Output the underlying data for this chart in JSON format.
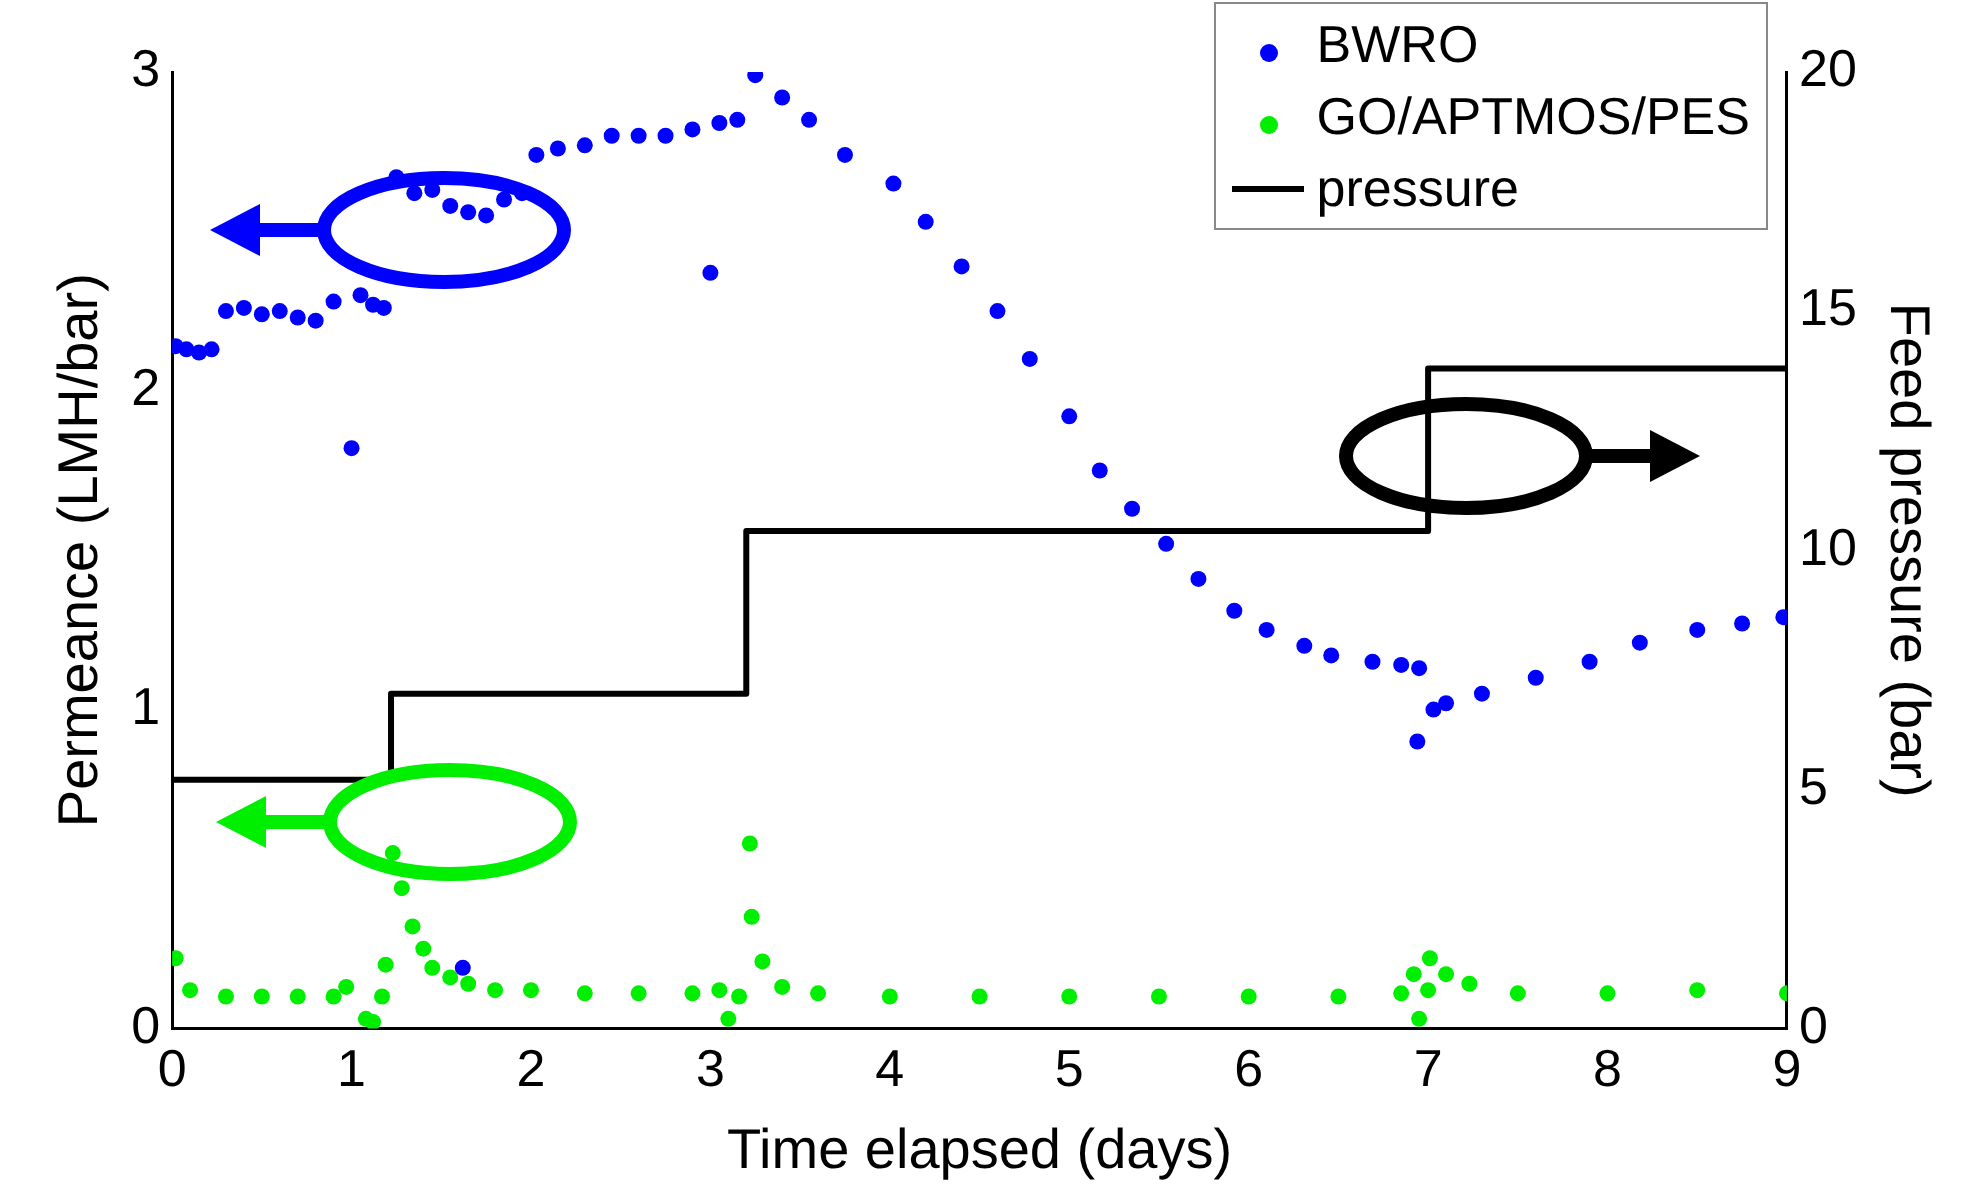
{
  "chart_data": {
    "type": "scatter",
    "xlabel": "Time elapsed (days)",
    "ylabel": "Permeance (LMH/bar)",
    "y2label": "Feed pressure (bar)",
    "xlim": [
      0,
      9
    ],
    "xticks": [
      0,
      1,
      2,
      3,
      4,
      5,
      6,
      7,
      8,
      9
    ],
    "ylim": [
      0,
      3
    ],
    "yticks": [
      0,
      1,
      2,
      3
    ],
    "y2lim": [
      0,
      20
    ],
    "y2ticks": [
      0,
      5,
      10,
      15,
      20
    ],
    "grid": false,
    "legend": "top right",
    "marker": "circle",
    "series": [
      {
        "name": "BWRO",
        "color": "#0000ff",
        "x": [
          0.02,
          0.08,
          0.15,
          0.22,
          0.3,
          0.4,
          0.5,
          0.6,
          0.7,
          0.8,
          0.9,
          1.0,
          1.05,
          1.12,
          1.18,
          1.25,
          1.35,
          1.45,
          1.55,
          1.62,
          1.65,
          1.75,
          1.85,
          1.95,
          2.03,
          2.15,
          2.3,
          2.45,
          2.6,
          2.75,
          2.9,
          3.0,
          3.05,
          3.15,
          3.25,
          3.4,
          3.55,
          3.75,
          4.02,
          4.2,
          4.4,
          4.6,
          4.78,
          5.0,
          5.17,
          5.35,
          5.54,
          5.72,
          5.92,
          6.1,
          6.31,
          6.46,
          6.69,
          6.85,
          6.94,
          6.95,
          7.03,
          7.1,
          7.3,
          7.6,
          7.9,
          8.18,
          8.5,
          8.75,
          8.98
        ],
        "values": [
          2.14,
          2.13,
          2.12,
          2.13,
          2.25,
          2.26,
          2.24,
          2.25,
          2.23,
          2.22,
          2.28,
          1.82,
          2.3,
          2.27,
          2.26,
          2.67,
          2.62,
          2.63,
          2.58,
          0.19,
          2.56,
          2.55,
          2.6,
          2.62,
          2.74,
          2.76,
          2.77,
          2.8,
          2.8,
          2.8,
          2.82,
          2.37,
          2.84,
          2.85,
          2.99,
          2.92,
          2.85,
          2.74,
          2.65,
          2.53,
          2.39,
          2.25,
          2.1,
          1.92,
          1.75,
          1.63,
          1.52,
          1.41,
          1.31,
          1.25,
          1.2,
          1.17,
          1.15,
          1.14,
          0.9,
          1.13,
          1.0,
          1.02,
          1.05,
          1.1,
          1.15,
          1.21,
          1.25,
          1.27,
          1.29
        ]
      },
      {
        "name": "GO/APTMOS/PES",
        "color": "#00ee00",
        "x": [
          0.02,
          0.1,
          0.3,
          0.5,
          0.7,
          0.9,
          0.97,
          1.08,
          1.12,
          1.17,
          1.19,
          1.23,
          1.28,
          1.34,
          1.4,
          1.45,
          1.55,
          1.65,
          1.8,
          2.0,
          2.3,
          2.6,
          2.9,
          3.05,
          3.1,
          3.16,
          3.22,
          3.23,
          3.29,
          3.4,
          3.6,
          4.0,
          4.5,
          5.0,
          5.5,
          6.0,
          6.5,
          6.85,
          6.92,
          6.95,
          7.0,
          7.01,
          7.1,
          7.23,
          7.5,
          8.0,
          8.5,
          9.0
        ],
        "values": [
          0.22,
          0.12,
          0.1,
          0.1,
          0.1,
          0.1,
          0.13,
          0.03,
          0.02,
          0.1,
          0.2,
          0.55,
          0.44,
          0.32,
          0.25,
          0.19,
          0.16,
          0.14,
          0.12,
          0.12,
          0.11,
          0.11,
          0.11,
          0.12,
          0.03,
          0.1,
          0.58,
          0.35,
          0.21,
          0.13,
          0.11,
          0.1,
          0.1,
          0.1,
          0.1,
          0.1,
          0.1,
          0.11,
          0.17,
          0.03,
          0.12,
          0.22,
          0.17,
          0.14,
          0.11,
          0.11,
          0.12,
          0.11
        ]
      },
      {
        "name": "pressure",
        "type": "step",
        "axis": "y2",
        "marker": "none",
        "color": "#000000",
        "x": [
          0,
          1.22,
          3.2,
          7.0,
          9.0
        ],
        "values": [
          5.2,
          7.0,
          10.4,
          13.8,
          13.8
        ]
      }
    ]
  }
}
